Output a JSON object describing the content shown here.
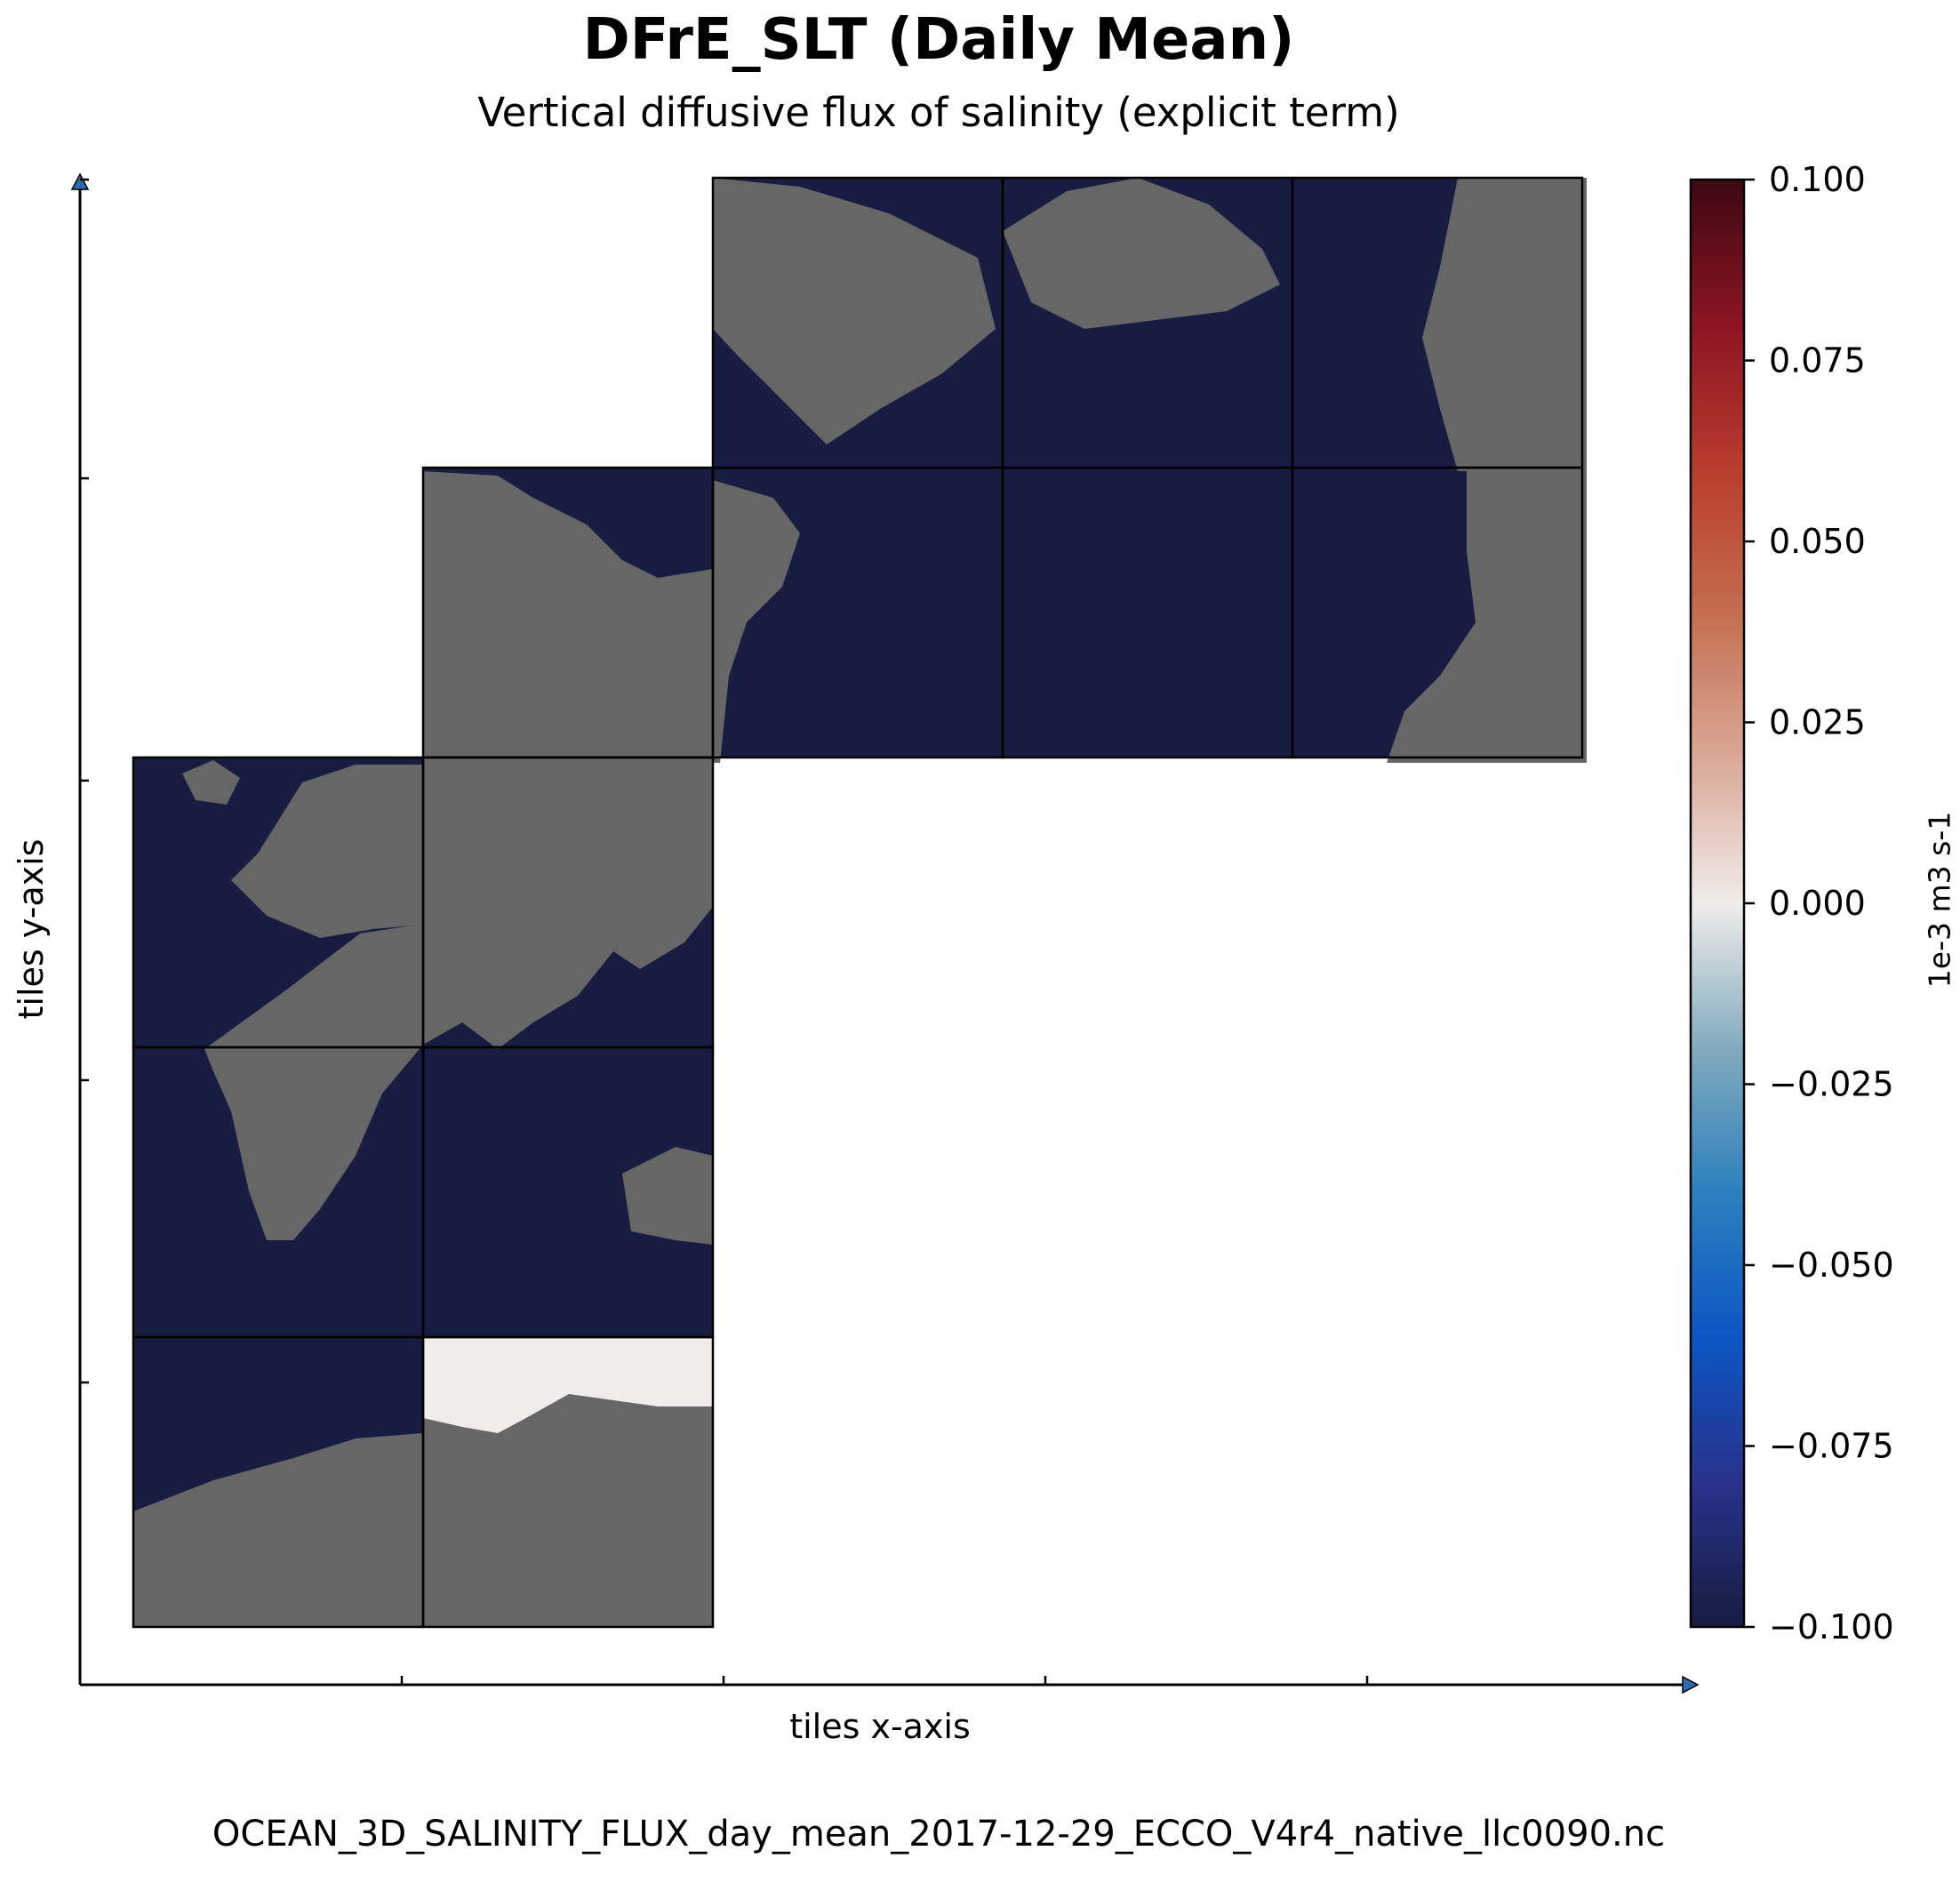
{
  "chart_data": {
    "type": "heatmap",
    "title": "DFrE_SLT (Daily Mean)",
    "subtitle": "Vertical diffusive flux of salinity (explicit term)",
    "xlabel": "tiles x-axis",
    "ylabel": "tiles y-axis",
    "footer": "OCEAN_3D_SALINITY_FLUX_day_mean_2017-12-29_ECCO_V4r4_native_llc0090.nc",
    "colorbar": {
      "label": "1e-3 m3 s-1",
      "range": [
        -0.1,
        0.1
      ],
      "tick_labels": [
        "0.100",
        "0.075",
        "0.050",
        "0.025",
        "0.000",
        "−0.025",
        "−0.050",
        "−0.075",
        "−0.100"
      ],
      "tick_values": [
        0.1,
        0.075,
        0.05,
        0.025,
        0.0,
        -0.025,
        -0.05,
        -0.075,
        -0.1
      ],
      "colormap": "balance"
    },
    "tile_grid": {
      "rows": 5,
      "cols": 5,
      "tiles": [
        {
          "row": 0,
          "col": 0,
          "value": -0.1
        },
        {
          "row": 0,
          "col": 1,
          "value": 0.0
        },
        {
          "row": 1,
          "col": 0,
          "value": -0.1
        },
        {
          "row": 1,
          "col": 1,
          "value": -0.1
        },
        {
          "row": 2,
          "col": 0,
          "value": -0.1
        },
        {
          "row": 2,
          "col": 1,
          "value": -0.1
        },
        {
          "row": 3,
          "col": 1,
          "value": -0.1
        },
        {
          "row": 3,
          "col": 2,
          "value": -0.1
        },
        {
          "row": 3,
          "col": 3,
          "value": -0.1
        },
        {
          "row": 3,
          "col": 4,
          "value": -0.1
        },
        {
          "row": 4,
          "col": 2,
          "value": -0.1
        },
        {
          "row": 4,
          "col": 3,
          "value": -0.1
        },
        {
          "row": 4,
          "col": 4,
          "value": -0.1
        }
      ]
    },
    "colors": {
      "ocean": "#171c40",
      "land": "#666666",
      "near_zero": "#efebea",
      "axis_arrow": "#2b6cb0"
    }
  }
}
